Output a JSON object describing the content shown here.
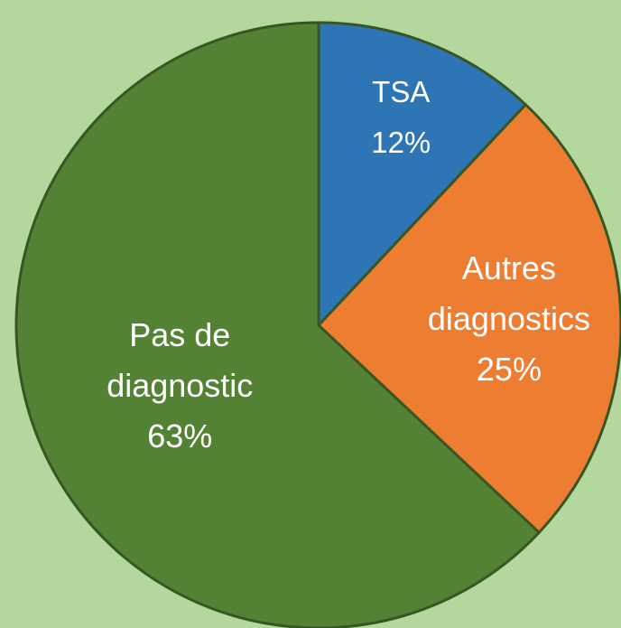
{
  "chart_data": {
    "type": "pie",
    "categories": [
      "TSA",
      "Autres diagnostics",
      "Pas de diagnostic"
    ],
    "values": [
      12,
      25,
      63
    ],
    "value_labels": [
      "12%",
      "25%",
      "63%"
    ],
    "colors": [
      "#2e75b6",
      "#ed7d31",
      "#548235"
    ]
  }
}
